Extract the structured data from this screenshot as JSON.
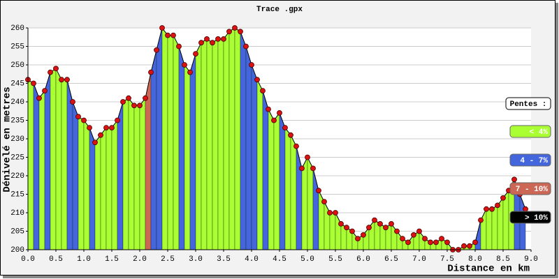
{
  "chart_data": {
    "type": "elevation",
    "title": "Trace .gpx",
    "x_label": "Distance en km",
    "y_label": "Dénivelé en metres",
    "legend_title": "Pentes :",
    "legend": [
      {
        "label": "< 4%",
        "color": "#aaff33"
      },
      {
        "label": "4 - 7%",
        "color": "#4466dd"
      },
      {
        "label": "7 - 10%",
        "color": "#cc6655"
      },
      {
        "label": "> 10%",
        "color": "#000000"
      }
    ],
    "x": [
      0.0,
      0.1,
      0.2,
      0.3,
      0.4,
      0.5,
      0.6,
      0.7,
      0.8,
      0.9,
      1.0,
      1.1,
      1.2,
      1.3,
      1.4,
      1.5,
      1.6,
      1.7,
      1.8,
      1.9,
      2.0,
      2.1,
      2.2,
      2.3,
      2.4,
      2.5,
      2.6,
      2.7,
      2.8,
      2.9,
      3.0,
      3.1,
      3.2,
      3.3,
      3.4,
      3.5,
      3.6,
      3.7,
      3.8,
      3.9,
      4.0,
      4.1,
      4.2,
      4.3,
      4.4,
      4.5,
      4.6,
      4.7,
      4.8,
      4.9,
      5.0,
      5.1,
      5.2,
      5.3,
      5.4,
      5.5,
      5.6,
      5.7,
      5.8,
      5.9,
      6.0,
      6.1,
      6.2,
      6.3,
      6.4,
      6.5,
      6.6,
      6.7,
      6.8,
      6.9,
      7.0,
      7.1,
      7.2,
      7.3,
      7.4,
      7.5,
      7.6,
      7.7,
      7.8,
      7.9,
      8.0,
      8.1,
      8.2,
      8.3,
      8.4,
      8.5,
      8.6,
      8.7,
      8.8,
      8.9
    ],
    "series": [
      {
        "color": "#dd1111",
        "values": [
          246,
          245,
          241,
          243,
          248,
          249,
          246,
          246,
          240,
          236,
          235,
          233,
          229,
          231,
          233,
          233,
          235,
          240,
          241,
          239,
          239,
          241,
          248,
          254,
          260,
          258,
          258,
          255,
          250,
          248,
          253,
          256,
          257,
          256,
          257,
          257,
          259,
          260,
          259,
          255,
          250,
          246,
          243,
          238,
          235,
          237,
          233,
          231,
          228,
          222,
          225,
          222,
          216,
          213,
          210,
          210,
          207,
          206,
          205,
          203,
          204,
          206,
          208,
          207,
          206,
          207,
          205,
          203,
          202,
          204,
          205,
          203,
          202,
          202,
          203,
          202,
          200,
          200,
          201,
          201,
          202,
          208,
          211,
          211,
          212,
          214,
          216,
          219,
          215,
          211
        ]
      }
    ],
    "segment_class": [
      0,
      1,
      0,
      1,
      0,
      0,
      0,
      1,
      1,
      0,
      0,
      1,
      0,
      0,
      0,
      0,
      1,
      0,
      0,
      0,
      0,
      2,
      1,
      1,
      0,
      0,
      0,
      1,
      0,
      1,
      0,
      0,
      0,
      0,
      0,
      0,
      0,
      0,
      1,
      1,
      1,
      0,
      1,
      0,
      0,
      1,
      0,
      0,
      1,
      0,
      0,
      1,
      0,
      0,
      0,
      0,
      0,
      0,
      0,
      0,
      0,
      0,
      0,
      0,
      0,
      0,
      0,
      0,
      0,
      0,
      0,
      0,
      0,
      0,
      0,
      0,
      0,
      0,
      0,
      0,
      1,
      0,
      0,
      0,
      0,
      0,
      0,
      1,
      1
    ],
    "xlim": [
      0,
      9
    ],
    "ylim": [
      200,
      260
    ],
    "xticks": [
      {
        "value": 0,
        "label": "0.0"
      },
      0.5,
      {
        "value": 1,
        "label": "1.0"
      },
      1.5,
      {
        "value": 2,
        "label": "2.0"
      },
      2.5,
      {
        "value": 3,
        "label": "3.0"
      },
      3.5,
      {
        "value": 4,
        "label": "4.0"
      },
      4.5,
      {
        "value": 5,
        "label": "5.0"
      },
      5.5,
      {
        "value": 6,
        "label": "6.0"
      },
      6.5,
      {
        "value": 7,
        "label": "7.0"
      },
      7.5,
      {
        "value": 8,
        "label": "8.0"
      },
      8.5,
      {
        "value": 9,
        "label": "9.0"
      }
    ],
    "yticks": [
      200,
      205,
      210,
      215,
      220,
      225,
      230,
      235,
      240,
      245,
      250,
      255,
      260
    ],
    "grid": true
  }
}
